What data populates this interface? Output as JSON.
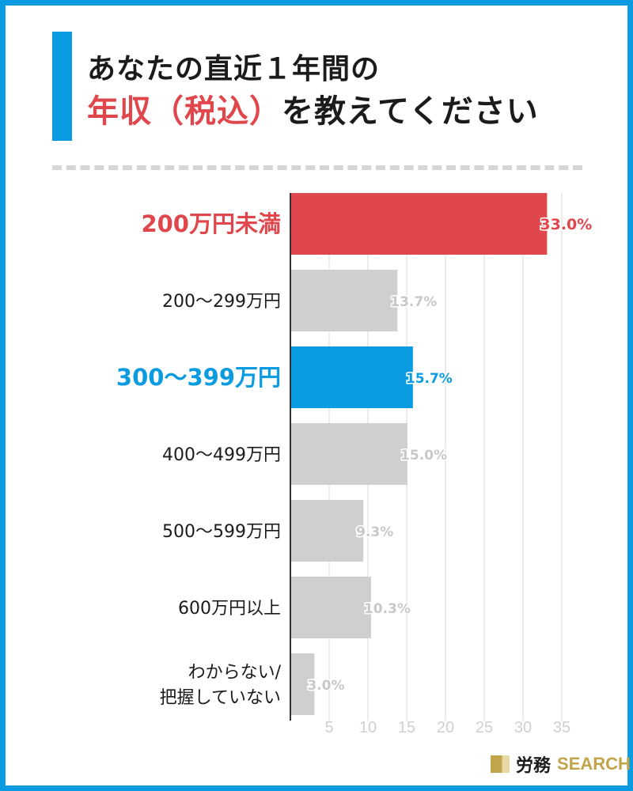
{
  "title": {
    "line1": "あなたの直近１年間の",
    "line2_red": "年収（税込）",
    "line2_rest": "を教えてください"
  },
  "brand": {
    "jp": "労務",
    "en": "SEARCH"
  },
  "colors": {
    "border": "#0a9be0",
    "highlight_red": "#e0474c",
    "highlight_blue": "#0a9be0",
    "bar_default": "#cfced0"
  },
  "chart_data": {
    "type": "bar",
    "orientation": "horizontal",
    "categories": [
      "200万円未満",
      "200〜299万円",
      "300〜399万円",
      "400〜499万円",
      "500〜599万円",
      "600万円以上",
      "わからない/\n把握していない"
    ],
    "values": [
      33.0,
      13.7,
      15.7,
      15.0,
      9.3,
      10.3,
      3.0
    ],
    "labels": [
      "33.0%",
      "13.7%",
      "15.7%",
      "15.0%",
      "9.3%",
      "10.3%",
      "3.0%"
    ],
    "highlight": [
      "red",
      "none",
      "blue",
      "none",
      "none",
      "none",
      "none"
    ],
    "xlim": [
      0,
      35
    ],
    "xticks": [
      5,
      10,
      15,
      20,
      25,
      30,
      35
    ],
    "grid": true,
    "title": "",
    "xlabel": "",
    "ylabel": ""
  }
}
